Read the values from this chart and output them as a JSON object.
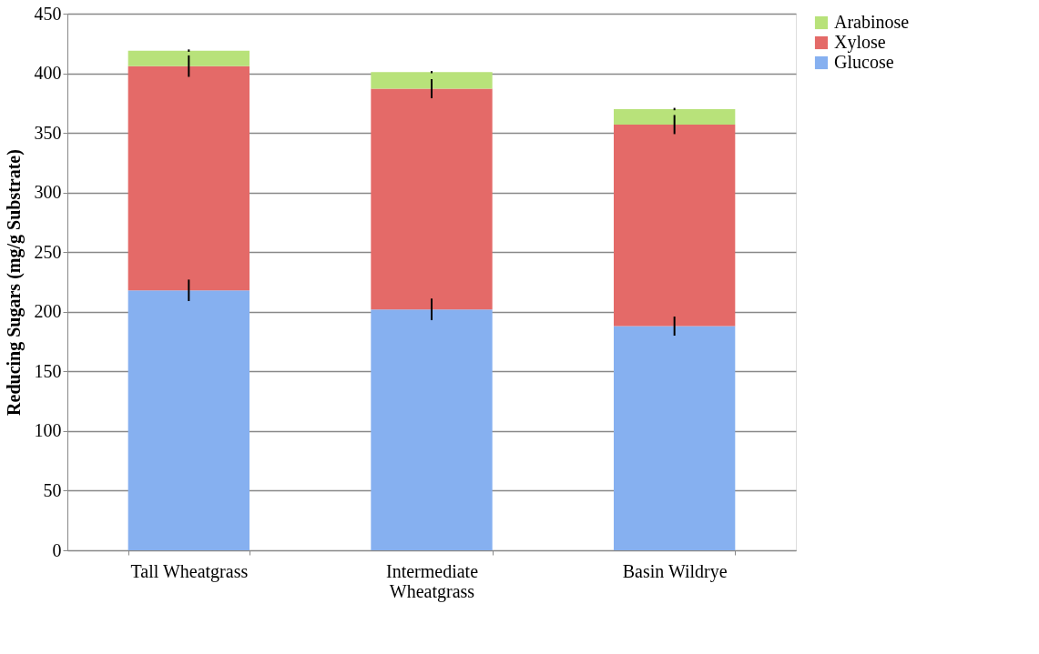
{
  "chart_data": {
    "type": "bar",
    "stacked": true,
    "ylabel": "Reducing Sugars (mg/g Substrate)",
    "categories": [
      "Tall Wheatgrass",
      "Intermediate Wheatgrass",
      "Basin Wildrye"
    ],
    "series": [
      {
        "name": "Glucose",
        "color": "#86b0f0",
        "values": [
          218,
          202,
          188
        ],
        "errors": [
          9,
          9,
          8
        ]
      },
      {
        "name": "Xylose",
        "color": "#e46a68",
        "values": [
          188,
          185,
          169
        ],
        "errors": [
          9,
          8,
          8
        ]
      },
      {
        "name": "Arabinose",
        "color": "#b8e27a",
        "values": [
          13,
          14,
          13
        ],
        "errors": [
          1,
          1,
          1
        ]
      }
    ],
    "ylim": [
      0,
      450
    ],
    "yticks": [
      0,
      50,
      100,
      150,
      200,
      250,
      300,
      350,
      400,
      450
    ],
    "grid": "y",
    "legend": "right"
  }
}
